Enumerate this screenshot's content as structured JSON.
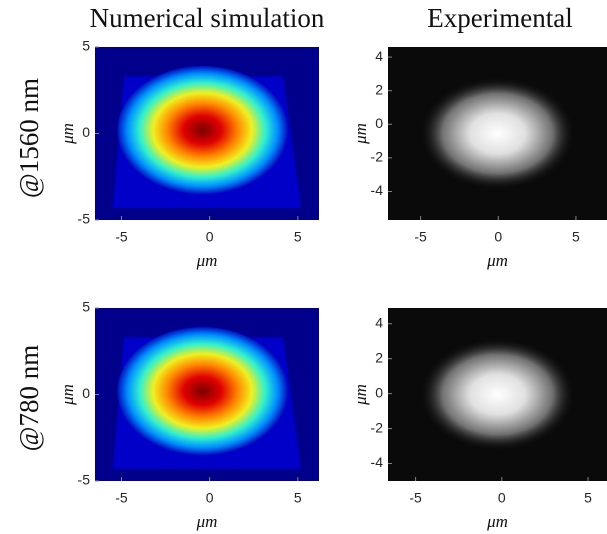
{
  "column_titles": [
    "Numerical simulation",
    "Experimental"
  ],
  "row_labels": [
    "@1560 nm",
    "@780 nm"
  ],
  "chart_data": [
    {
      "type": "heatmap",
      "colormap": "jet",
      "xlabel": "μm",
      "ylabel": "μm",
      "xlim": [
        -6.5,
        6.2
      ],
      "ylim": [
        -5,
        5
      ],
      "xticks": [
        -5,
        0,
        5
      ],
      "yticks": [
        -5,
        0,
        5
      ]
    },
    {
      "type": "heatmap",
      "colormap": "gray",
      "xlabel": "μm",
      "ylabel": "μm",
      "xlim": [
        -7.1,
        7.0
      ],
      "ylim": [
        -5.7,
        4.6
      ],
      "xticks": [
        -5,
        0,
        5
      ],
      "yticks": [
        -4,
        -2,
        0,
        2,
        4
      ]
    },
    {
      "type": "heatmap",
      "colormap": "jet",
      "xlabel": "μm",
      "ylabel": "μm",
      "xlim": [
        -6.5,
        6.2
      ],
      "ylim": [
        -5,
        5
      ],
      "xticks": [
        -5,
        0,
        5
      ],
      "yticks": [
        -5,
        0,
        5
      ]
    },
    {
      "type": "heatmap",
      "colormap": "gray",
      "xlabel": "μm",
      "ylabel": "μm",
      "xlim": [
        -6.6,
        6.1
      ],
      "ylim": [
        -5.0,
        4.9
      ],
      "xticks": [
        -5,
        0,
        5
      ],
      "yticks": [
        -4,
        -2,
        0,
        2,
        4
      ]
    }
  ]
}
